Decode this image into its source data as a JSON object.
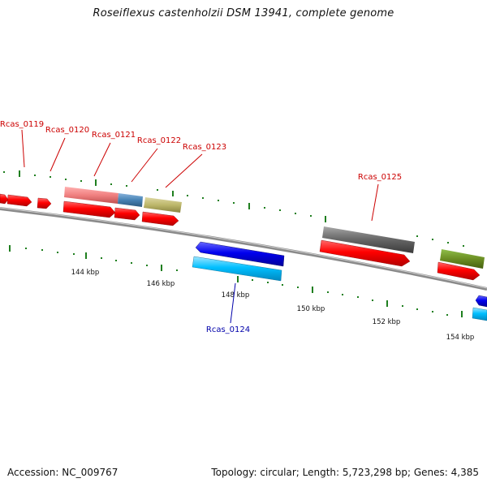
{
  "title": "Roseiflexus castenholzii DSM 13941, complete genome",
  "footer": {
    "accession": "Accession: NC_009767",
    "summary": "Topology: circular; Length: 5,723,298 bp; Genes: 4,385"
  },
  "colors": {
    "background": "#ffffff",
    "backbone": "#8a8a8a",
    "tick": "#1f7f1f",
    "forward_cds": "#ff0000",
    "reverse_cds": "#0000ee",
    "reverse_secondary": "#00bfff",
    "forward_label": "#cc0000",
    "reverse_label": "#0000aa"
  },
  "scale": {
    "unit": "kbp",
    "tick_labels": [
      "144 kbp",
      "146 kbp",
      "148 kbp",
      "150 kbp",
      "152 kbp",
      "154 kbp"
    ]
  },
  "gene_labels": [
    {
      "name": "Rcas_0119",
      "strand": "forward"
    },
    {
      "name": "Rcas_0120",
      "strand": "forward"
    },
    {
      "name": "Rcas_0121",
      "strand": "forward"
    },
    {
      "name": "Rcas_0122",
      "strand": "forward"
    },
    {
      "name": "Rcas_0123",
      "strand": "forward"
    },
    {
      "name": "Rcas_0125",
      "strand": "forward"
    },
    {
      "name": "Rcas_0124",
      "strand": "reverse"
    }
  ]
}
